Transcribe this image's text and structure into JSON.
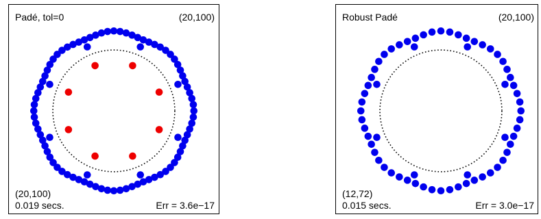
{
  "colors": {
    "blue": "#0000ee",
    "red": "#ee0000",
    "frame": "#000000"
  },
  "chart_data": [
    {
      "type": "scatter",
      "title": "Padé, tol=0",
      "corner_label": "(20,100)",
      "bottom_label": "(20,100)",
      "time_label": "0.019 secs.",
      "err_label": "Err = 3.6e−17",
      "xlim": [
        -1.35,
        1.35
      ],
      "ylim": [
        -1.35,
        1.35
      ],
      "unit_circle_radius": 0.87,
      "series": [
        {
          "role": "outer",
          "color": "blue",
          "count": 80,
          "radius": 1.12,
          "phase_deg": 0,
          "ripple": 0.022,
          "ripple_k": 8
        },
        {
          "role": "middle",
          "color": "blue",
          "count": 8,
          "radius": 0.99,
          "phase_deg": 22.5
        },
        {
          "role": "inner",
          "color": "red",
          "count": 8,
          "radius": 0.7,
          "phase_deg": 22.5
        }
      ]
    },
    {
      "type": "scatter",
      "title": "Robust Padé",
      "corner_label": "(20,100)",
      "bottom_label": "(12,72)",
      "time_label": "0.015 secs.",
      "err_label": "Err = 3.0e−17",
      "xlim": [
        -1.35,
        1.35
      ],
      "ylim": [
        -1.35,
        1.35
      ],
      "unit_circle_radius": 0.87,
      "series": [
        {
          "role": "outer",
          "color": "blue",
          "count": 56,
          "radius": 1.12,
          "phase_deg": 0,
          "ripple": 0.022,
          "ripple_k": 8
        },
        {
          "role": "middle",
          "color": "blue",
          "count": 8,
          "radius": 0.99,
          "phase_deg": 22.5
        }
      ]
    }
  ]
}
